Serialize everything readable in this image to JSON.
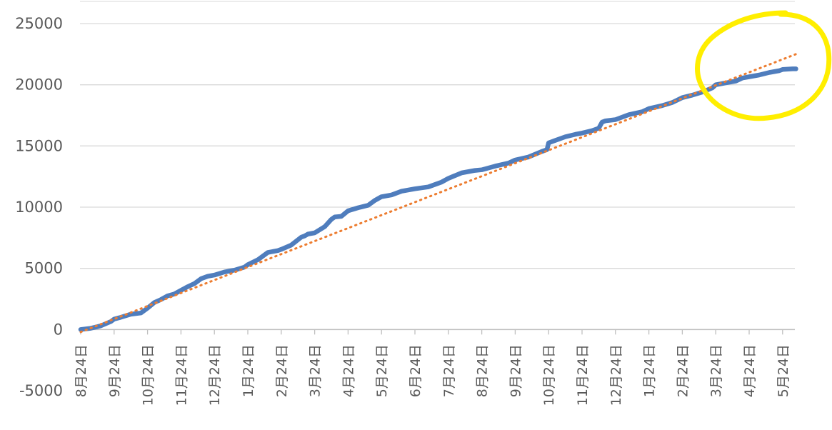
{
  "chart_data": {
    "type": "line",
    "y_axis": {
      "min": -5000,
      "max": 25000,
      "ticks": [
        -5000,
        0,
        5000,
        10000,
        15000,
        20000,
        25000
      ],
      "grid": true
    },
    "x_tick_labels": [
      "8月24日",
      "9月24日",
      "10月24日",
      "11月24日",
      "12月24日",
      "1月24日",
      "2月24日",
      "3月24日",
      "4月24日",
      "5月24日",
      "6月24日",
      "7月24日",
      "8月24日",
      "9月24日",
      "10月24日",
      "11月24日",
      "12月24日",
      "1月24日",
      "2月24日",
      "3月24日",
      "4月24日",
      "5月24日"
    ],
    "series": [
      {
        "type": "line",
        "color": "#4f7dbd",
        "x": [
          0,
          0.3,
          0.6,
          0.9,
          1.0,
          1.2,
          1.5,
          1.8,
          2.0,
          2.2,
          2.4,
          2.6,
          2.8,
          3.0,
          3.2,
          3.4,
          3.6,
          3.8,
          4.0,
          4.3,
          4.6,
          4.9,
          5.0,
          5.3,
          5.6,
          5.9,
          6.0,
          6.3,
          6.6,
          6.7,
          6.8,
          7.0,
          7.3,
          7.5,
          7.6,
          7.8,
          8.0,
          8.3,
          8.6,
          8.8,
          9.0,
          9.3,
          9.6,
          10.0,
          10.4,
          10.8,
          11.0,
          11.4,
          11.8,
          12.0,
          12.4,
          12.8,
          13.0,
          13.4,
          13.8,
          13.95,
          14.0,
          14.2,
          14.5,
          14.8,
          15.0,
          15.3,
          15.5,
          15.6,
          15.7,
          16.0,
          16.4,
          16.8,
          17.0,
          17.4,
          17.7,
          18.0,
          18.3,
          18.6,
          18.9,
          19.0,
          19.3,
          19.6,
          19.8,
          20.0,
          20.3,
          20.6,
          20.9,
          21.0,
          21.3,
          21.4
        ],
        "y": [
          0,
          100,
          300,
          650,
          850,
          1000,
          1250,
          1350,
          1750,
          2200,
          2450,
          2750,
          2900,
          3200,
          3500,
          3750,
          4150,
          4350,
          4450,
          4700,
          4850,
          5100,
          5300,
          5700,
          6300,
          6450,
          6550,
          6900,
          7550,
          7650,
          7800,
          7900,
          8400,
          9000,
          9200,
          9250,
          9700,
          9950,
          10150,
          10550,
          10850,
          11000,
          11300,
          11500,
          11650,
          12050,
          12350,
          12800,
          13000,
          13050,
          13350,
          13600,
          13850,
          14100,
          14550,
          14700,
          15250,
          15450,
          15750,
          15950,
          16050,
          16250,
          16450,
          16950,
          17050,
          17150,
          17550,
          17800,
          18050,
          18300,
          18550,
          18950,
          19150,
          19400,
          19750,
          20000,
          20150,
          20300,
          20550,
          20650,
          20800,
          21000,
          21150,
          21250,
          21300,
          21300
        ]
      },
      {
        "type": "trendline",
        "style": "dotted",
        "color": "#ed7d31",
        "x": [
          0,
          21.4
        ],
        "y": [
          -200,
          22500
        ]
      }
    ]
  },
  "annotation": {
    "shape": "circle",
    "color": "#ffee00"
  }
}
